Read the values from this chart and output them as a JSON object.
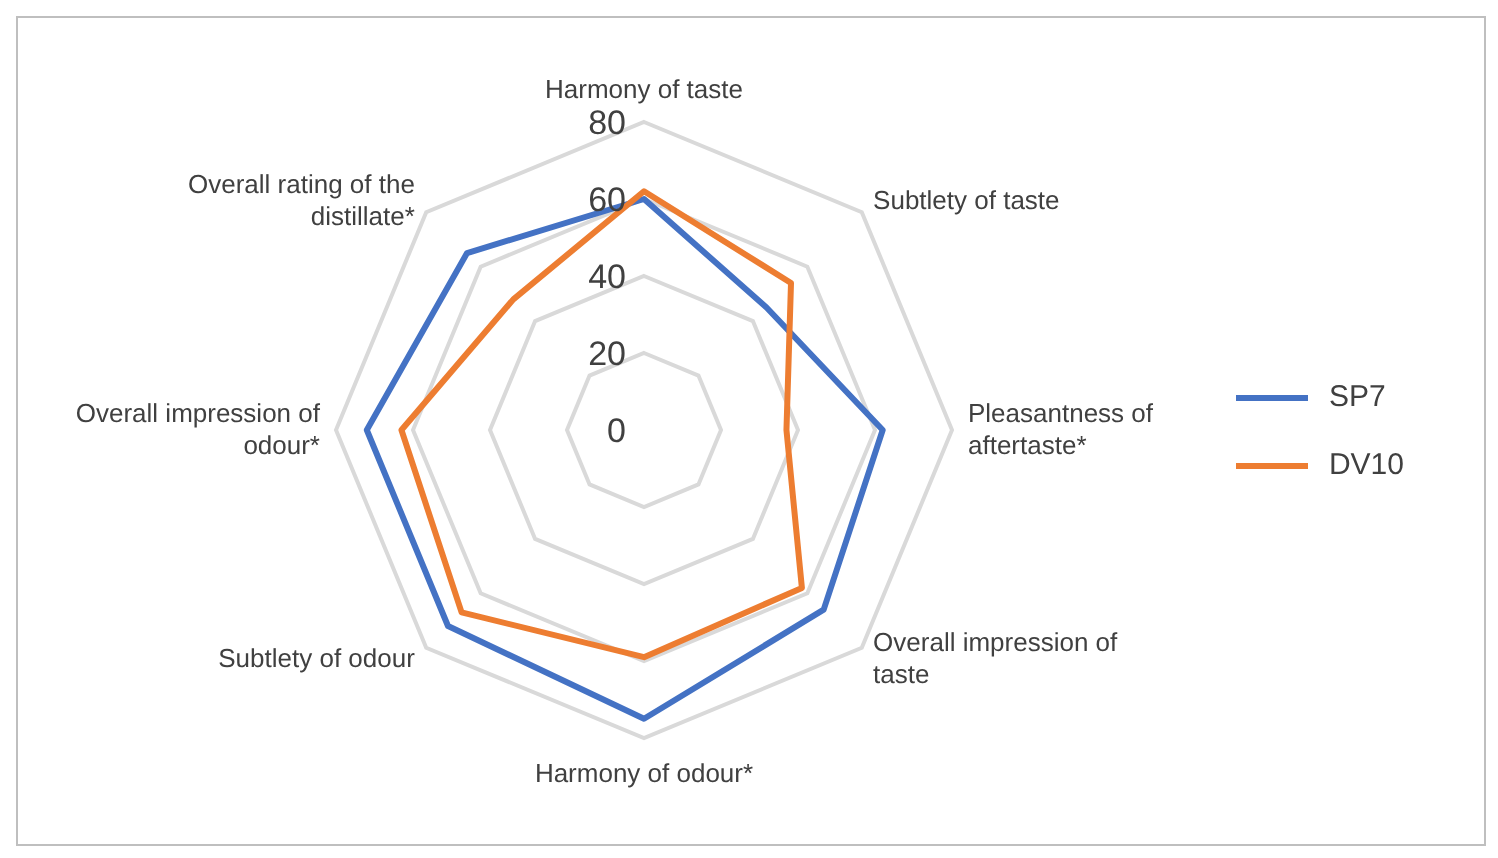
{
  "chart_data": {
    "type": "radar",
    "categories": [
      "Harmony of taste",
      "Subtlety of taste",
      "Pleasantness of aftertaste*",
      "Overall impression of taste",
      "Harmony of odour*",
      "Subtlety of odour",
      "Overall impression of odour*",
      "Overall rating of the distillate*"
    ],
    "series": [
      {
        "name": "SP7",
        "color": "#4472c4",
        "values": [
          60,
          45,
          62,
          66,
          75,
          72,
          72,
          65
        ]
      },
      {
        "name": "DV10",
        "color": "#ed7d31",
        "values": [
          62,
          54,
          37,
          58,
          59,
          67,
          63,
          48
        ]
      }
    ],
    "ylim": [
      0,
      80
    ],
    "yticks": [
      0,
      20,
      40,
      60,
      80
    ],
    "grid": true,
    "legend": "right",
    "marker": "none"
  }
}
